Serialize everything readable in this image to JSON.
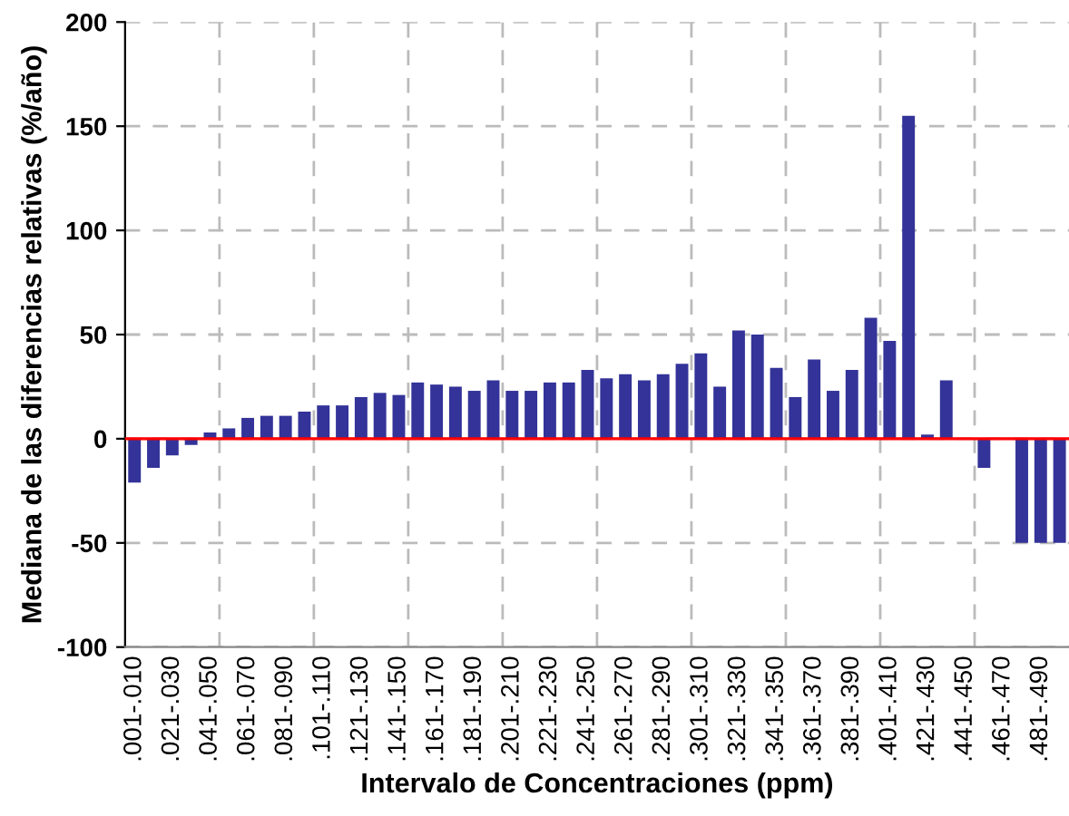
{
  "chart_data": {
    "type": "bar",
    "xlabel": "Intervalo de Concentraciones (ppm)",
    "ylabel": "Mediana de las diferencias relativas (%/año)",
    "categories": [
      ".001-.010",
      null,
      ".021-.030",
      null,
      ".041-.050",
      null,
      ".061-.070",
      null,
      ".081-.090",
      null,
      ".101-.110",
      null,
      ".121-.130",
      null,
      ".141-.150",
      null,
      ".161-.170",
      null,
      ".181-.190",
      null,
      ".201-.210",
      null,
      ".221-.230",
      null,
      ".241-.250",
      null,
      ".261-.270",
      null,
      ".281-.290",
      null,
      ".301-.310",
      null,
      ".321-.330",
      null,
      ".341-.350",
      null,
      ".361-.370",
      null,
      ".381-.390",
      null,
      ".401-.410",
      null,
      ".421-.430",
      null,
      ".441-.450",
      null,
      ".461-.470",
      null,
      ".481-.490",
      null
    ],
    "values": [
      -21,
      -14,
      -8,
      -3,
      3,
      5,
      10,
      11,
      11,
      13,
      16,
      16,
      20,
      22,
      21,
      27,
      26,
      25,
      23,
      28,
      23,
      23,
      27,
      27,
      33,
      29,
      31,
      28,
      31,
      36,
      41,
      25,
      52,
      50,
      34,
      20,
      38,
      23,
      33,
      58,
      47,
      155,
      2,
      28,
      null,
      -14,
      null,
      -50,
      -50,
      -50
    ],
    "color": "#333399",
    "ylim": [
      -100,
      200
    ],
    "yticks": [
      -100,
      -50,
      0,
      50,
      100,
      150,
      200
    ],
    "grid": true,
    "ref_lines": [
      {
        "axis": "y",
        "value": 0,
        "color": "#ff0000"
      }
    ]
  }
}
